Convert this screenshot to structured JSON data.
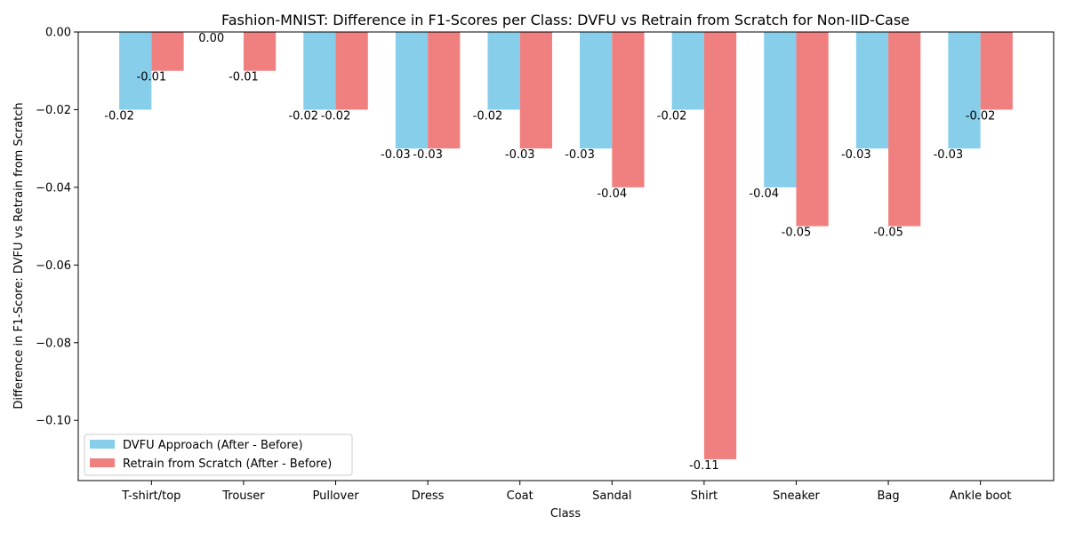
{
  "chart_data": {
    "type": "bar",
    "title": "Fashion-MNIST: Difference in F1-Scores per Class: DVFU vs Retrain from Scratch for Non-IID-Case",
    "xlabel": "Class",
    "ylabel": "Difference in F1-Score: DVFU vs Retrain from Scratch",
    "categories": [
      "T-shirt/top",
      "Trouser",
      "Pullover",
      "Dress",
      "Coat",
      "Sandal",
      "Shirt",
      "Sneaker",
      "Bag",
      "Ankle boot"
    ],
    "ylim": [
      -0.1155,
      0.0
    ],
    "yticks": [
      0.0,
      -0.02,
      -0.04,
      -0.06,
      -0.08,
      -0.1
    ],
    "ytick_labels": [
      "0.00",
      "−0.02",
      "−0.04",
      "−0.06",
      "−0.08",
      "−0.10"
    ],
    "grid": false,
    "legend_position": "lower-left",
    "series": [
      {
        "name": "DVFU Approach (After - Before)",
        "color": "#87CEEB",
        "values": [
          -0.02,
          0.0,
          -0.02,
          -0.03,
          -0.02,
          -0.03,
          -0.02,
          -0.04,
          -0.03,
          -0.03
        ],
        "labels": [
          "-0.02",
          "0.00",
          "-0.02",
          "-0.03",
          "-0.02",
          "-0.03",
          "-0.02",
          "-0.04",
          "-0.03",
          "-0.03"
        ]
      },
      {
        "name": "Retrain from Scratch (After - Before)",
        "color": "#F08080",
        "values": [
          -0.01,
          -0.01,
          -0.02,
          -0.03,
          -0.03,
          -0.04,
          -0.11,
          -0.05,
          -0.05,
          -0.02
        ],
        "labels": [
          "-0.01",
          "-0.01",
          "-0.02",
          "-0.03",
          "-0.03",
          "-0.04",
          "-0.11",
          "-0.05",
          "-0.05",
          "-0.02"
        ]
      }
    ]
  }
}
